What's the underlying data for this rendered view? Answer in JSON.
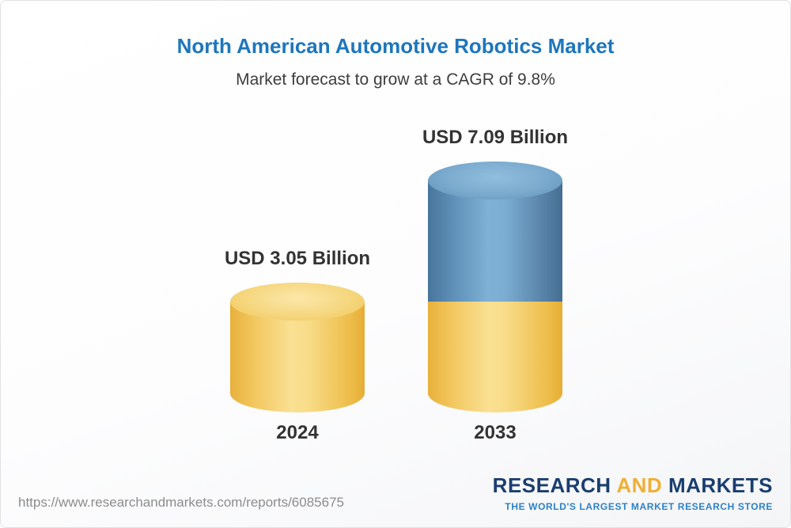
{
  "header": {
    "title": "North American Automotive Robotics Market",
    "subtitle": "Market forecast to grow at a CAGR of 9.8%"
  },
  "chart_data": {
    "type": "bar",
    "variant": "3d-cylinder",
    "categories": [
      "2024",
      "2033"
    ],
    "values": [
      3.05,
      7.09
    ],
    "value_labels": [
      "USD 3.05 Billion",
      "USD 7.09 Billion"
    ],
    "unit": "USD Billion",
    "cagr_percent": 9.8,
    "title": "North American Automotive Robotics Market",
    "subtitle": "Market forecast to grow at a CAGR of 9.8%",
    "legend": "none",
    "grid": false,
    "colors": {
      "base_segment": "#F2C75F",
      "growth_segment": "#6699C2"
    },
    "segments_note": "2033 cylinder is stacked: yellow base segment equals the 2024 value (3.05) and the blue growth segment adds 4.04 to reach 7.09"
  },
  "footer": {
    "source_url": "https://www.researchandmarkets.com/reports/6085675",
    "logo": {
      "research": "RESEARCH",
      "and": "AND",
      "markets": "MARKETS",
      "tagline": "THE WORLD'S LARGEST MARKET RESEARCH STORE"
    }
  }
}
